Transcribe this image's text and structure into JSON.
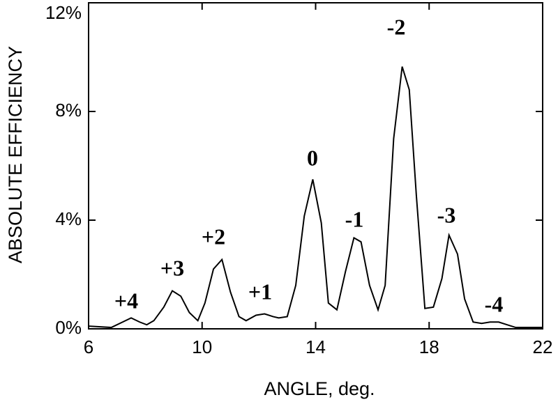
{
  "chart_data": {
    "type": "line",
    "xlabel": "ANGLE, deg.",
    "ylabel": "ABSOLUTE EFFICIENCY",
    "xlim": [
      6,
      22
    ],
    "ylim": [
      0,
      12
    ],
    "xticks": [
      6,
      10,
      14,
      18,
      22
    ],
    "yticks": [
      {
        "value": 0,
        "label": "0%"
      },
      {
        "value": 4,
        "label": "4%"
      },
      {
        "value": 8,
        "label": "8%"
      },
      {
        "value": 12,
        "label": "12%"
      }
    ],
    "color": "#000000",
    "x": [
      6,
      6.8,
      7.2,
      7.5,
      7.8,
      8.05,
      8.3,
      8.65,
      8.95,
      9.25,
      9.55,
      9.85,
      10.1,
      10.4,
      10.7,
      11.0,
      11.3,
      11.55,
      11.9,
      12.2,
      12.5,
      12.7,
      13.0,
      13.3,
      13.6,
      13.9,
      14.2,
      14.45,
      14.75,
      15.05,
      15.35,
      15.6,
      15.9,
      16.2,
      16.45,
      16.75,
      17.05,
      17.3,
      17.55,
      17.85,
      18.15,
      18.45,
      18.7,
      19.0,
      19.25,
      19.55,
      19.85,
      20.15,
      20.45,
      20.75,
      21.05,
      22
    ],
    "values": [
      0.1,
      0.05,
      0.25,
      0.4,
      0.25,
      0.15,
      0.3,
      0.8,
      1.4,
      1.2,
      0.6,
      0.3,
      0.95,
      2.2,
      2.55,
      1.35,
      0.45,
      0.3,
      0.5,
      0.55,
      0.45,
      0.4,
      0.45,
      1.6,
      4.15,
      5.5,
      3.9,
      0.95,
      0.7,
      2.1,
      3.35,
      3.2,
      1.6,
      0.7,
      1.6,
      7.0,
      9.65,
      8.8,
      4.9,
      0.75,
      0.8,
      1.85,
      3.45,
      2.75,
      1.1,
      0.25,
      0.2,
      0.25,
      0.25,
      0.15,
      0.05,
      0.05
    ],
    "annotations": [
      "+4",
      "+3",
      "+2",
      "+1",
      "0",
      "-1",
      "-2",
      "-3",
      "-4"
    ]
  }
}
